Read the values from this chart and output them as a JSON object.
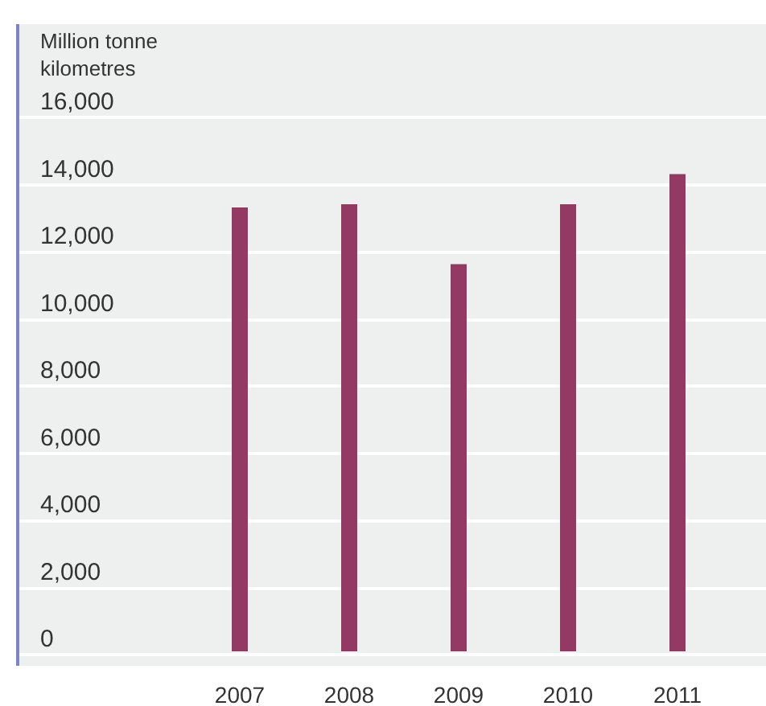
{
  "chart_data": {
    "type": "bar",
    "ylabel": "Million tonne kilometres",
    "categories": [
      "2007",
      "2008",
      "2009",
      "2010",
      "2011"
    ],
    "values": [
      13300,
      13400,
      11600,
      13400,
      14300
    ],
    "color": "#943864",
    "ylim": [
      0,
      16000
    ],
    "yticks": [
      0,
      {
        "value": 2000,
        "label": "2,000"
      },
      {
        "value": 4000,
        "label": "4,000"
      },
      {
        "value": 6000,
        "label": "6,000"
      },
      {
        "value": 8000,
        "label": "8,000"
      },
      {
        "value": 10000,
        "label": "10,000"
      },
      {
        "value": 12000,
        "label": "12,000"
      },
      {
        "value": 14000,
        "label": "14,000"
      },
      {
        "value": 16000,
        "label": "16,000"
      }
    ],
    "grid": "y"
  }
}
